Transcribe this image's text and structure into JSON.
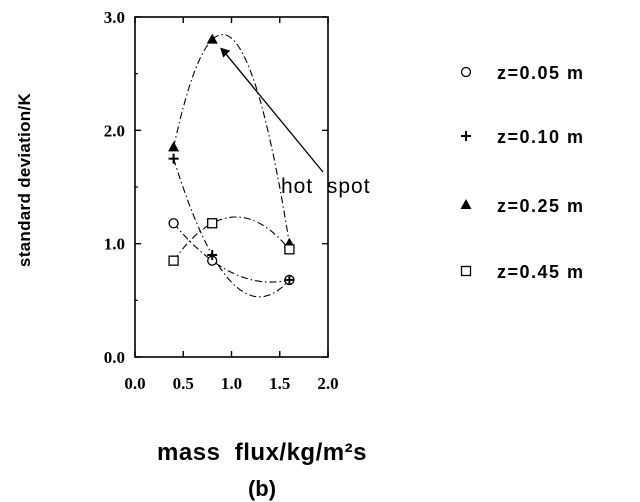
{
  "chart_data": {
    "type": "scatter",
    "xlabel": "mass  flux/kg/m²s",
    "ylabel": "standard  deviation/K",
    "panel_label": "(b)",
    "xlim": [
      0.0,
      2.0
    ],
    "ylim": [
      0.0,
      3.0
    ],
    "xticks": [
      "0.0",
      "0.5",
      "1.0",
      "1.5",
      "2.0"
    ],
    "yticks": [
      "0.0",
      "1.0",
      "2.0",
      "3.0"
    ],
    "annotation": "hot  spot",
    "legend_position": "right",
    "series": [
      {
        "name": "z=0.05  m",
        "marker": "circle-open",
        "x": [
          0.4,
          0.8,
          1.6
        ],
        "y": [
          1.18,
          0.85,
          0.68
        ]
      },
      {
        "name": "z=0.10  m",
        "marker": "plus",
        "x": [
          0.4,
          0.8,
          1.6
        ],
        "y": [
          1.75,
          0.9,
          0.68
        ]
      },
      {
        "name": "z=0.25  m",
        "marker": "triangle-filled",
        "x": [
          0.4,
          0.8,
          1.6
        ],
        "y": [
          1.85,
          2.8,
          1.0
        ]
      },
      {
        "name": "z=0.45  m",
        "marker": "square-open",
        "x": [
          0.4,
          0.8,
          1.6
        ],
        "y": [
          0.85,
          1.18,
          0.95
        ]
      }
    ]
  }
}
